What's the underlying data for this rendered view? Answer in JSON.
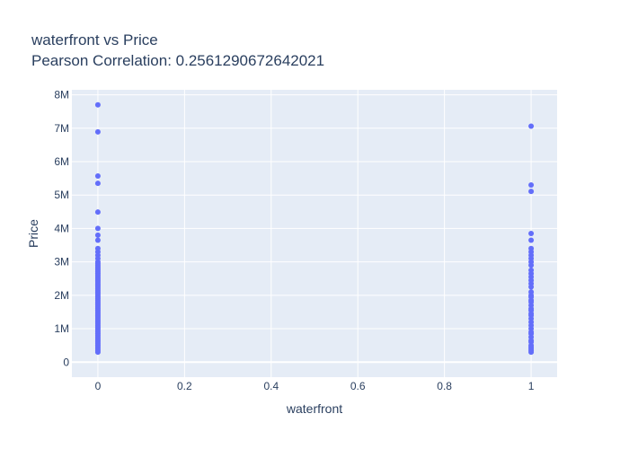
{
  "chart_data": {
    "type": "scatter",
    "title": "waterfront vs Price",
    "subtitle": "Pearson Correlation: 0.2561290672642021",
    "xlabel": "waterfront",
    "ylabel": "Price",
    "xlim": [
      -0.06,
      1.06
    ],
    "ylim": [
      -450000,
      8150000
    ],
    "grid": true,
    "x_ticks": [
      {
        "value": 0,
        "label": "0"
      },
      {
        "value": 0.2,
        "label": "0.2"
      },
      {
        "value": 0.4,
        "label": "0.4"
      },
      {
        "value": 0.6,
        "label": "0.6"
      },
      {
        "value": 0.8,
        "label": "0.8"
      },
      {
        "value": 1,
        "label": "1"
      }
    ],
    "y_ticks": [
      {
        "value": 0,
        "label": "0"
      },
      {
        "value": 1000000,
        "label": "1M"
      },
      {
        "value": 2000000,
        "label": "2M"
      },
      {
        "value": 3000000,
        "label": "3M"
      },
      {
        "value": 4000000,
        "label": "4M"
      },
      {
        "value": 5000000,
        "label": "5M"
      },
      {
        "value": 6000000,
        "label": "6M"
      },
      {
        "value": 7000000,
        "label": "7M"
      },
      {
        "value": 8000000,
        "label": "8M"
      }
    ],
    "marker_color": "#636efa",
    "plot_bg": "#e5ecf6",
    "series": [
      {
        "x": [
          0,
          0,
          0,
          0,
          0,
          0,
          0,
          0,
          0,
          0,
          0,
          0,
          0,
          0,
          0,
          0,
          0,
          0,
          0,
          0,
          0,
          0,
          0,
          0,
          0,
          0,
          0,
          0,
          0,
          0,
          0,
          0,
          0,
          0,
          0,
          0,
          0,
          0,
          0,
          0,
          0,
          0,
          0,
          0,
          0,
          0,
          0,
          0,
          0,
          0,
          0,
          0,
          0,
          0,
          0,
          0,
          0,
          0,
          0,
          0,
          0,
          0,
          0,
          0,
          0,
          0,
          0
        ],
        "y": [
          7700000,
          6890000,
          5570000,
          5350000,
          4490000,
          4000000,
          3800000,
          3650000,
          3400000,
          3300000,
          3200000,
          3100000,
          3000000,
          2950000,
          2900000,
          2850000,
          2800000,
          2750000,
          2700000,
          2650000,
          2600000,
          2550000,
          2500000,
          2450000,
          2400000,
          2350000,
          2300000,
          2250000,
          2200000,
          2150000,
          2100000,
          2050000,
          2000000,
          1950000,
          1900000,
          1850000,
          1800000,
          1750000,
          1700000,
          1650000,
          1600000,
          1550000,
          1500000,
          1450000,
          1400000,
          1350000,
          1300000,
          1250000,
          1200000,
          1150000,
          1100000,
          1050000,
          1000000,
          950000,
          900000,
          850000,
          800000,
          750000,
          700000,
          650000,
          600000,
          550000,
          500000,
          450000,
          400000,
          350000,
          300000
        ]
      },
      {
        "x": [
          1,
          1,
          1,
          1,
          1,
          1,
          1,
          1,
          1,
          1,
          1,
          1,
          1,
          1,
          1,
          1,
          1,
          1,
          1,
          1,
          1,
          1,
          1,
          1,
          1,
          1,
          1,
          1,
          1,
          1,
          1,
          1,
          1,
          1,
          1,
          1,
          1,
          1,
          1,
          1,
          1
        ],
        "y": [
          7060000,
          5300000,
          5110000,
          3850000,
          3650000,
          3400000,
          3300000,
          3200000,
          3100000,
          3000000,
          2900000,
          2750000,
          2650000,
          2550000,
          2450000,
          2350000,
          2250000,
          2100000,
          2000000,
          1950000,
          1850000,
          1800000,
          1700000,
          1600000,
          1550000,
          1450000,
          1400000,
          1300000,
          1200000,
          1100000,
          1000000,
          900000,
          850000,
          750000,
          650000,
          600000,
          500000,
          450000,
          400000,
          350000,
          300000
        ]
      }
    ]
  }
}
